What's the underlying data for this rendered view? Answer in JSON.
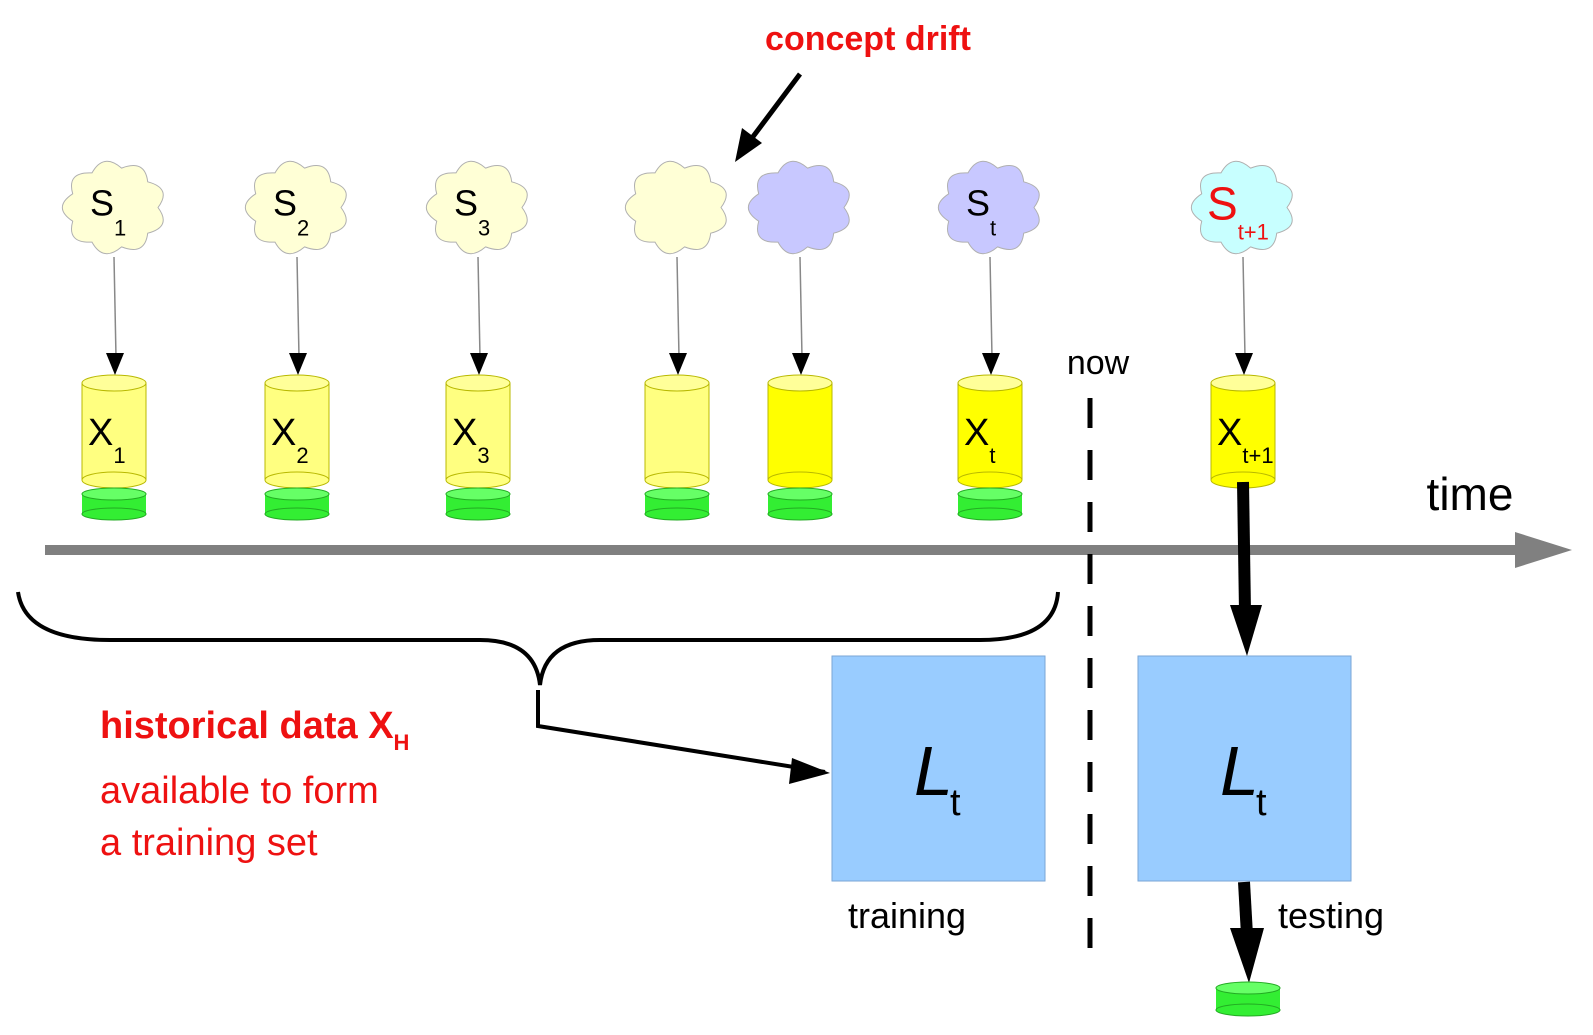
{
  "annotation": {
    "concept_drift": "concept drift"
  },
  "axis": {
    "time_label": "time",
    "now_label": "now"
  },
  "sources": [
    {
      "main": "S",
      "sub": "1",
      "color": "#ffffd6"
    },
    {
      "main": "S",
      "sub": "2",
      "color": "#ffffd6"
    },
    {
      "main": "S",
      "sub": "3",
      "color": "#ffffd6"
    },
    {
      "main": "",
      "sub": "",
      "color": "#ffffd6"
    },
    {
      "main": "",
      "sub": "",
      "color": "#c8c8ff"
    },
    {
      "main": "S",
      "sub": "t",
      "color": "#c8c8ff"
    },
    {
      "main": "S",
      "sub": "t+1",
      "color": "#c8ffff",
      "text_color": "#ee1111"
    }
  ],
  "datasets": [
    {
      "main": "X",
      "sub": "1",
      "color": "#ffff80"
    },
    {
      "main": "X",
      "sub": "2",
      "color": "#ffff80"
    },
    {
      "main": "X",
      "sub": "3",
      "color": "#ffff80"
    },
    {
      "main": "",
      "sub": "",
      "color": "#ffff80"
    },
    {
      "main": "",
      "sub": "",
      "color": "#ffff00"
    },
    {
      "main": "X",
      "sub": "t",
      "color": "#ffff00"
    },
    {
      "main": "X",
      "sub": "t+1",
      "color": "#ffff00"
    }
  ],
  "historical": {
    "title_main": "historical data X",
    "title_sub": "H",
    "line2": "available to form",
    "line3": "a training set"
  },
  "learners": {
    "train": {
      "main": "L",
      "sub": "t",
      "caption": "training"
    },
    "test": {
      "main": "L",
      "sub": "t",
      "caption": "testing"
    }
  },
  "colors": {
    "learner_fill": "#99ccff",
    "label_green": "#33ee33",
    "axis": "#808080",
    "accent_red": "#ee1111"
  }
}
